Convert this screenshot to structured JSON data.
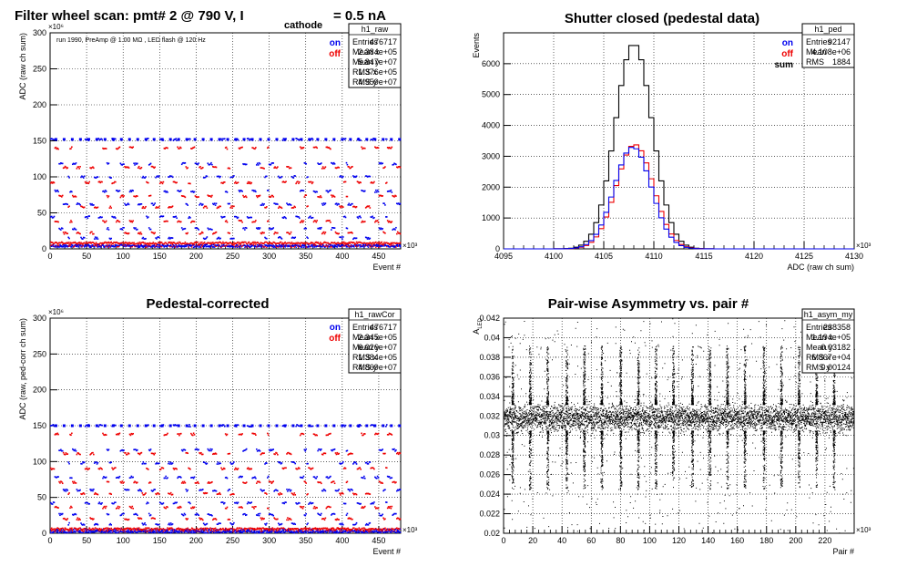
{
  "chart_data": [
    {
      "id": "raw",
      "type": "scatter",
      "title": "Filter wheel scan: pmt#   2 @   790 V, I",
      "title_sub": "cathode",
      "title_tail": "= 0.5 nA",
      "annotation": "run 1990, PreAmp @ 1.00 MΩ , LED flash @  120 Hz",
      "xlabel": "Event #",
      "ylabel": "ADC (raw ch sum)",
      "x_exp": "×10³",
      "y_exp": "×10⁶",
      "xlim": [
        0,
        480
      ],
      "ylim": [
        0,
        300
      ],
      "xticks": [
        0,
        50,
        100,
        150,
        200,
        250,
        300,
        350,
        400,
        450
      ],
      "yticks": [
        0,
        50,
        100,
        150,
        200,
        250,
        300
      ],
      "grid": true,
      "legend_entries": [
        {
          "label": "on",
          "color": "#0000ee"
        },
        {
          "label": "off",
          "color": "#ee0000"
        }
      ],
      "stats": {
        "name": "h1_raw",
        "rows": [
          [
            "Entries",
            "476717"
          ],
          [
            "Mean x",
            "2.384e+05"
          ],
          [
            "Mean y",
            "5.847e+07"
          ],
          [
            "RMS x",
            "1.376e+05"
          ],
          [
            "RMS y",
            "4.959e+07"
          ]
        ]
      },
      "levels": [
        152,
        140,
        118,
        113,
        100,
        92,
        80,
        73,
        62,
        58,
        44,
        38,
        28,
        22,
        15,
        8,
        4
      ],
      "period": 27,
      "series": [
        {
          "name": "on",
          "color": "#0000ee"
        },
        {
          "name": "off",
          "color": "#ee0000"
        }
      ]
    },
    {
      "id": "ped",
      "type": "histogram",
      "title": "Shutter closed (pedestal data)",
      "xlabel": "ADC (raw ch sum)",
      "ylabel": "Events",
      "x_exp": "×10³",
      "xlim": [
        4095,
        4130
      ],
      "ylim": [
        0,
        7000
      ],
      "xticks": [
        4095,
        4100,
        4105,
        4110,
        4115,
        4120,
        4125,
        4130
      ],
      "yticks": [
        0,
        1000,
        2000,
        3000,
        4000,
        5000,
        6000
      ],
      "grid": true,
      "legend_entries": [
        {
          "label": "on",
          "color": "#0000ee"
        },
        {
          "label": "off",
          "color": "#ee0000"
        },
        {
          "label": "sum",
          "color": "#000000"
        }
      ],
      "stats": {
        "name": "h1_ped",
        "rows": [
          [
            "Entries",
            "92147"
          ],
          [
            "Mean",
            "4.108e+06"
          ],
          [
            "RMS",
            "1884"
          ]
        ]
      },
      "series": [
        {
          "name": "sum",
          "color": "#000000",
          "mean": 4108,
          "sigma": 1.85,
          "peak": 6650
        },
        {
          "name": "off",
          "color": "#ee0000",
          "mean": 4108.1,
          "sigma": 1.85,
          "peak": 3380
        },
        {
          "name": "on",
          "color": "#0000ee",
          "mean": 4107.9,
          "sigma": 1.85,
          "peak": 3300
        }
      ]
    },
    {
      "id": "rawCor",
      "type": "scatter",
      "title": "Pedestal-corrected",
      "xlabel": "Event #",
      "ylabel": "ADC (raw, ped-corr ch sum)",
      "x_exp": "×10³",
      "y_exp": "×10⁶",
      "xlim": [
        0,
        480
      ],
      "ylim": [
        0,
        300
      ],
      "xticks": [
        0,
        50,
        100,
        150,
        200,
        250,
        300,
        350,
        400,
        450
      ],
      "yticks": [
        0,
        50,
        100,
        150,
        200,
        250,
        300
      ],
      "grid": true,
      "legend_entries": [
        {
          "label": "on",
          "color": "#0000ee"
        },
        {
          "label": "off",
          "color": "#ee0000"
        }
      ],
      "stats": {
        "name": "h1_rawCor",
        "rows": [
          [
            "Entries",
            "476717"
          ],
          [
            "Mean x",
            "2.345e+05"
          ],
          [
            "Mean y",
            "6.026e+07"
          ],
          [
            "RMS x",
            "1.384e+05"
          ],
          [
            "RMS y",
            "4.869e+07"
          ]
        ]
      },
      "levels": [
        150,
        138,
        116,
        111,
        98,
        90,
        78,
        71,
        60,
        55,
        42,
        36,
        26,
        20,
        13,
        6,
        2
      ],
      "period": 27,
      "series": [
        {
          "name": "on",
          "color": "#0000ee"
        },
        {
          "name": "off",
          "color": "#ee0000"
        }
      ]
    },
    {
      "id": "asym",
      "type": "scatter",
      "title": "Pair-wise Asymmetry vs. pair #",
      "xlabel": "Pair #",
      "ylabel": "A",
      "ylabel_sub": "LED",
      "x_exp": "×10³",
      "xlim": [
        0,
        240
      ],
      "ylim": [
        0.02,
        0.042
      ],
      "xticks": [
        0,
        20,
        40,
        60,
        80,
        100,
        120,
        140,
        160,
        180,
        200,
        220
      ],
      "yticks": [
        0.02,
        0.022,
        0.024,
        0.026,
        0.028,
        0.03,
        0.032,
        0.034,
        0.036,
        0.038,
        0.04,
        0.042
      ],
      "grid": true,
      "stats": {
        "name": "h1_asym_my",
        "rows": [
          [
            "Entries",
            "238358"
          ],
          [
            "Mean x",
            "1.194e+05"
          ],
          [
            "Mean y",
            "0.03182"
          ],
          [
            "RMS x",
            "6.867e+04"
          ],
          [
            "RMS y",
            "0.00124"
          ]
        ]
      },
      "band": [
        0.0305,
        0.0332
      ],
      "spike_x": [
        6,
        18,
        30,
        43,
        55,
        67,
        80,
        92,
        104,
        116,
        129,
        141,
        153,
        165,
        178,
        190,
        202,
        214,
        226
      ],
      "series": [
        {
          "name": "asym",
          "color": "#000000"
        }
      ]
    }
  ]
}
